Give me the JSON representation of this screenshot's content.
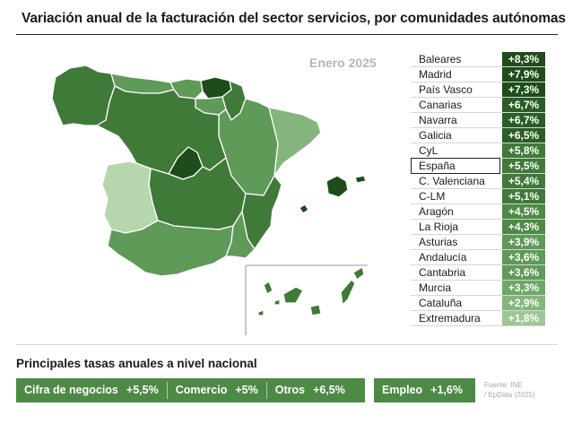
{
  "title": "Variación anual de la facturación del sector servicios, por comunidades autónomas",
  "date_label": "Enero 2025",
  "colors": {
    "darkest": "#1e4d1b",
    "dark": "#3f7a38",
    "mid": "#5f9a58",
    "light": "#84b57c",
    "lightest": "#b6d6ae",
    "highlight_border": "#222222"
  },
  "map_regions": [
    {
      "name": "Galicia",
      "value": 6.5
    },
    {
      "name": "Asturias",
      "value": 3.9
    },
    {
      "name": "Cantabria",
      "value": 3.6
    },
    {
      "name": "País Vasco",
      "value": 7.3
    },
    {
      "name": "Navarra",
      "value": 6.7
    },
    {
      "name": "La Rioja",
      "value": 4.3
    },
    {
      "name": "Aragón",
      "value": 4.5
    },
    {
      "name": "Cataluña",
      "value": 2.9
    },
    {
      "name": "CyL",
      "value": 5.8
    },
    {
      "name": "Madrid",
      "value": 7.9
    },
    {
      "name": "C-LM",
      "value": 5.1
    },
    {
      "name": "C. Valenciana",
      "value": 5.4
    },
    {
      "name": "Extremadura",
      "value": 1.8
    },
    {
      "name": "Andalucía",
      "value": 3.6
    },
    {
      "name": "Murcia",
      "value": 3.3
    },
    {
      "name": "Baleares",
      "value": 8.3
    },
    {
      "name": "Canarias",
      "value": 6.7
    }
  ],
  "ranking": [
    {
      "name": "Baleares",
      "value": "+8,3%",
      "color": "#1e4d1b"
    },
    {
      "name": "Madrid",
      "value": "+7,9%",
      "color": "#1e4d1b"
    },
    {
      "name": "País Vasco",
      "value": "+7,3%",
      "color": "#1e4d1b"
    },
    {
      "name": "Canarias",
      "value": "+6,7%",
      "color": "#2a5e25"
    },
    {
      "name": "Navarra",
      "value": "+6,7%",
      "color": "#2a5e25"
    },
    {
      "name": "Galicia",
      "value": "+6,5%",
      "color": "#2a5e25"
    },
    {
      "name": "CyL",
      "value": "+5,8%",
      "color": "#3f7a38"
    },
    {
      "name": "España",
      "value": "+5,5%",
      "color": "#3f7a38",
      "highlight": true
    },
    {
      "name": "C. Valenciana",
      "value": "+5,4%",
      "color": "#3f7a38"
    },
    {
      "name": "C-LM",
      "value": "+5,1%",
      "color": "#3f7a38"
    },
    {
      "name": "Aragón",
      "value": "+4,5%",
      "color": "#4d8a46"
    },
    {
      "name": "La Rioja",
      "value": "+4,3%",
      "color": "#4d8a46"
    },
    {
      "name": "Asturias",
      "value": "+3,9%",
      "color": "#5f9a58"
    },
    {
      "name": "Andalucía",
      "value": "+3,6%",
      "color": "#5f9a58"
    },
    {
      "name": "Cantabria",
      "value": "+3,6%",
      "color": "#5f9a58"
    },
    {
      "name": "Murcia",
      "value": "+3,3%",
      "color": "#6ea866"
    },
    {
      "name": "Cataluña",
      "value": "+2,9%",
      "color": "#84b57c"
    },
    {
      "name": "Extremadura",
      "value": "+1,8%",
      "color": "#9dc794"
    }
  ],
  "national_rates": {
    "subtitle": "Principales tasas anuales a nivel nacional",
    "items": [
      {
        "label": "Cifra de negocios",
        "value": "+5,5%"
      },
      {
        "label": "Comercio",
        "value": "+5%"
      },
      {
        "label": "Otros",
        "value": "+6,5%"
      },
      {
        "label": "Empleo",
        "value": "+1,6%"
      }
    ]
  },
  "source": {
    "line1": "Fuente: INE",
    "line2": "/ EpData (2025)"
  }
}
